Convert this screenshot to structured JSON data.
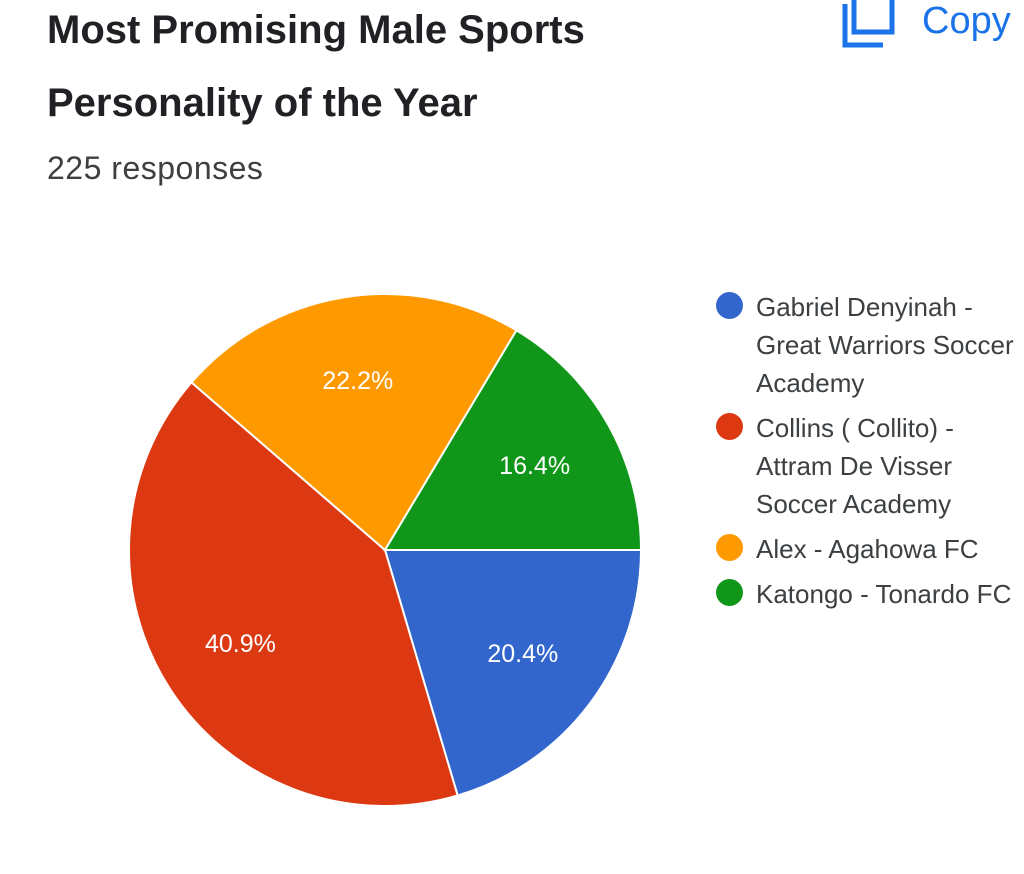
{
  "header": {
    "title": "Most Promising Male Sports Personality of the Year",
    "responses": "225 responses",
    "copy_label": "Copy",
    "copy_icon": "copy-icon"
  },
  "colors": {
    "accent": "#1a73e8",
    "slice_border": "#ffffff",
    "label_text": "#ffffff"
  },
  "chart_data": {
    "type": "pie",
    "title": "Most Promising Male Sports Personality of the Year",
    "legend_position": "right",
    "slices": [
      {
        "label": "Gabriel Denyinah - Great Warriors Soccer Academy",
        "value": 20.4,
        "display": "20.4%",
        "color": "#3366cc"
      },
      {
        "label": "Collins ( Collito) - Attram De Visser Soccer Academy",
        "value": 40.9,
        "display": "40.9%",
        "color": "#dc3912"
      },
      {
        "label": "Alex - Agahowa FC",
        "value": 22.2,
        "display": "22.2%",
        "color": "#ff9900"
      },
      {
        "label": "Katongo - Tonardo FC",
        "value": 16.4,
        "display": "16.4%",
        "color": "#109618"
      }
    ]
  }
}
